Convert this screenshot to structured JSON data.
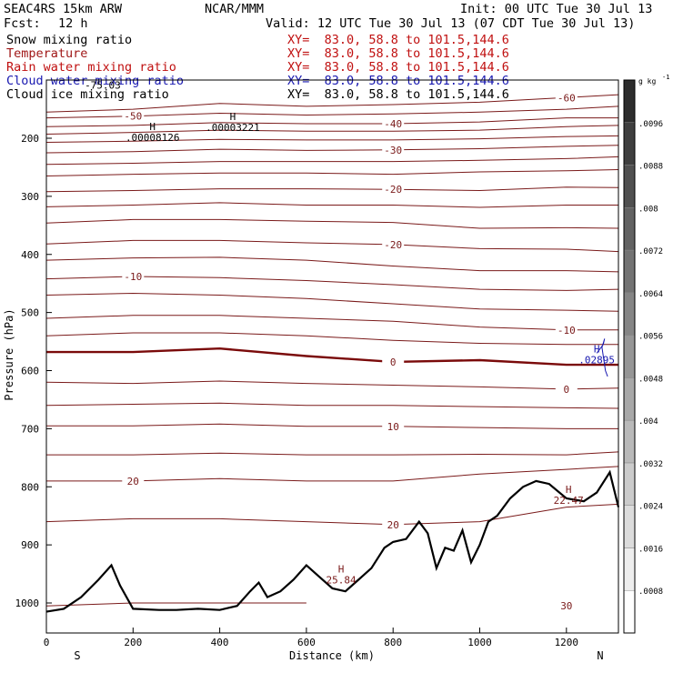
{
  "header": {
    "model": "SEAC4RS 15km ARW",
    "org": "NCAR/MMM",
    "init": "Init: 00 UTC Tue 30 Jul 13",
    "fcst_label": "Fcst:",
    "fcst_value": "12 h",
    "valid": "Valid: 12 UTC Tue 30 Jul 13 (07 CDT Tue 30 Jul 13)"
  },
  "fields": [
    {
      "name": "Snow mixing ratio",
      "xy": "XY=  83.0, 58.8 to 101.5,144.6",
      "color": "#000000"
    },
    {
      "name": "Temperature",
      "xy": "XY=  83.0, 58.8 to 101.5,144.6",
      "color": "#a01818"
    },
    {
      "name": "Rain water mixing ratio",
      "xy": "XY=  83.0, 58.8 to 101.5,144.6",
      "color": "#c01010"
    },
    {
      "name": "Cloud water mixing ratio",
      "xy": "XY=  83.0, 58.8 to 101.5,144.6",
      "color": "#1818b0"
    },
    {
      "name": "Cloud ice mixing ratio",
      "xy": "XY=  83.0, 58.8 to 101.5,144.6",
      "color": "#000000"
    }
  ],
  "colors": {
    "isotherm": "#7a1a1a",
    "freezing": "#7a0a0a",
    "terrain": "#000000",
    "cloud_water": "#1818b0"
  },
  "chart_data": {
    "type": "cross-section",
    "xlabel": "Distance (km)",
    "ylabel": "Pressure (hPa)",
    "xlim": [
      0,
      1320
    ],
    "ylim": [
      1020,
      100
    ],
    "xticks": [
      0,
      200,
      400,
      600,
      800,
      1000,
      1200
    ],
    "yticks": [
      200,
      300,
      400,
      500,
      600,
      700,
      800,
      900,
      1000
    ],
    "x_end_labels": {
      "left": "S",
      "right": "N"
    },
    "isotherms": [
      {
        "temp": -60,
        "p": [
          155,
          150,
          140,
          145,
          142,
          138,
          130,
          125
        ]
      },
      {
        "temp": -50,
        "p": [
          165,
          162,
          157,
          160,
          158,
          155,
          150,
          145
        ]
      },
      {
        "temp": -40,
        "p": [
          180,
          178,
          173,
          175,
          175,
          172,
          165,
          165
        ]
      },
      {
        "temp": null,
        "p": [
          193,
          190,
          186,
          188,
          188,
          186,
          180,
          178
        ]
      },
      {
        "temp": null,
        "p": [
          207,
          205,
          202,
          203,
          203,
          201,
          197,
          196
        ]
      },
      {
        "temp": -30,
        "p": [
          225,
          223,
          219,
          221,
          220,
          218,
          214,
          212
        ]
      },
      {
        "temp": null,
        "p": [
          245,
          243,
          240,
          240,
          240,
          238,
          235,
          232
        ]
      },
      {
        "temp": null,
        "p": [
          265,
          262,
          260,
          260,
          262,
          258,
          256,
          254
        ]
      },
      {
        "temp": -20,
        "p": [
          292,
          290,
          287,
          287,
          288,
          290,
          284,
          285
        ]
      },
      {
        "temp": null,
        "p": [
          318,
          315,
          311,
          315,
          315,
          319,
          315,
          315
        ]
      },
      {
        "temp": null,
        "p": [
          346,
          340,
          340,
          343,
          345,
          355,
          354,
          355
        ]
      },
      {
        "temp": -20,
        "p": [
          382,
          376,
          376,
          380,
          383,
          390,
          391,
          395
        ]
      },
      {
        "temp": null,
        "p": [
          410,
          406,
          405,
          410,
          420,
          428,
          428,
          430
        ]
      },
      {
        "temp": -10,
        "p": [
          442,
          438,
          440,
          445,
          452,
          460,
          462,
          460
        ]
      },
      {
        "temp": null,
        "p": [
          470,
          467,
          470,
          476,
          485,
          494,
          496,
          498
        ]
      },
      {
        "temp": -10,
        "p": [
          510,
          505,
          505,
          510,
          515,
          525,
          530,
          530
        ]
      },
      {
        "temp": null,
        "p": [
          540,
          535,
          535,
          540,
          548,
          553,
          555,
          555
        ]
      },
      {
        "temp": 0,
        "p": [
          568,
          568,
          562,
          575,
          585,
          582,
          590,
          590
        ],
        "freezing": true
      },
      {
        "temp": 0,
        "p": [
          620,
          622,
          618,
          622,
          625,
          628,
          632,
          630
        ]
      },
      {
        "temp": null,
        "p": [
          660,
          658,
          656,
          660,
          660,
          662,
          664,
          665
        ]
      },
      {
        "temp": 10,
        "p": [
          695,
          695,
          692,
          696,
          696,
          698,
          700,
          700
        ]
      },
      {
        "temp": null,
        "p": [
          745,
          745,
          742,
          745,
          745,
          744,
          745,
          740
        ]
      },
      {
        "temp": 20,
        "p": [
          790,
          790,
          786,
          790,
          790,
          778,
          770,
          765
        ]
      },
      {
        "temp": 20,
        "p": [
          860,
          855,
          855,
          860,
          865,
          860,
          835,
          830
        ]
      },
      {
        "temp": 30,
        "p": [
          1005,
          1000,
          1000,
          1000,
          null,
          null,
          null,
          null
        ]
      }
    ],
    "isotherm_x": [
      0,
      200,
      400,
      600,
      800,
      1000,
      1200,
      1320
    ],
    "terrain": {
      "x": [
        0,
        40,
        80,
        120,
        150,
        170,
        200,
        260,
        300,
        350,
        400,
        440,
        470,
        490,
        510,
        540,
        570,
        600,
        630,
        660,
        690,
        720,
        750,
        780,
        800,
        830,
        860,
        880,
        900,
        920,
        940,
        960,
        980,
        1000,
        1020,
        1040,
        1070,
        1100,
        1130,
        1160,
        1200,
        1240,
        1270,
        1300,
        1320
      ],
      "p": [
        1015,
        1010,
        990,
        960,
        935,
        970,
        1010,
        1012,
        1012,
        1010,
        1012,
        1005,
        980,
        965,
        990,
        980,
        960,
        935,
        955,
        975,
        980,
        960,
        940,
        905,
        895,
        890,
        860,
        880,
        940,
        905,
        910,
        875,
        930,
        900,
        860,
        850,
        820,
        800,
        790,
        795,
        820,
        825,
        810,
        775,
        835
      ]
    },
    "cloud_water": {
      "x": [
        1270,
        1285,
        1288,
        1282,
        1290,
        1295
      ],
      "p": [
        570,
        555,
        545,
        560,
        600,
        610
      ]
    },
    "highs": [
      {
        "x": 245,
        "p": 195,
        "label": "H",
        "value": ".00008126"
      },
      {
        "x": 430,
        "p": 178,
        "label": "H",
        "value": ".00003221"
      },
      {
        "x": 1270,
        "p": 578,
        "label": "H",
        "value": ".02895"
      },
      {
        "x": 680,
        "p": 957,
        "label": "H",
        "value": "25.84"
      },
      {
        "x": 1205,
        "p": 820,
        "label": "H",
        "value": "22.47"
      }
    ],
    "extra_labels": [
      {
        "x": 130,
        "p": 115,
        "text": "-75.03"
      }
    ],
    "colorbar": {
      "unit": "g kg",
      "unit_exp": "-1",
      "ticks": [
        ".0008",
        ".0016",
        ".0024",
        ".0032",
        ".004",
        ".0048",
        ".0056",
        ".0064",
        ".0072",
        ".008",
        ".0088",
        ".0096"
      ]
    }
  }
}
